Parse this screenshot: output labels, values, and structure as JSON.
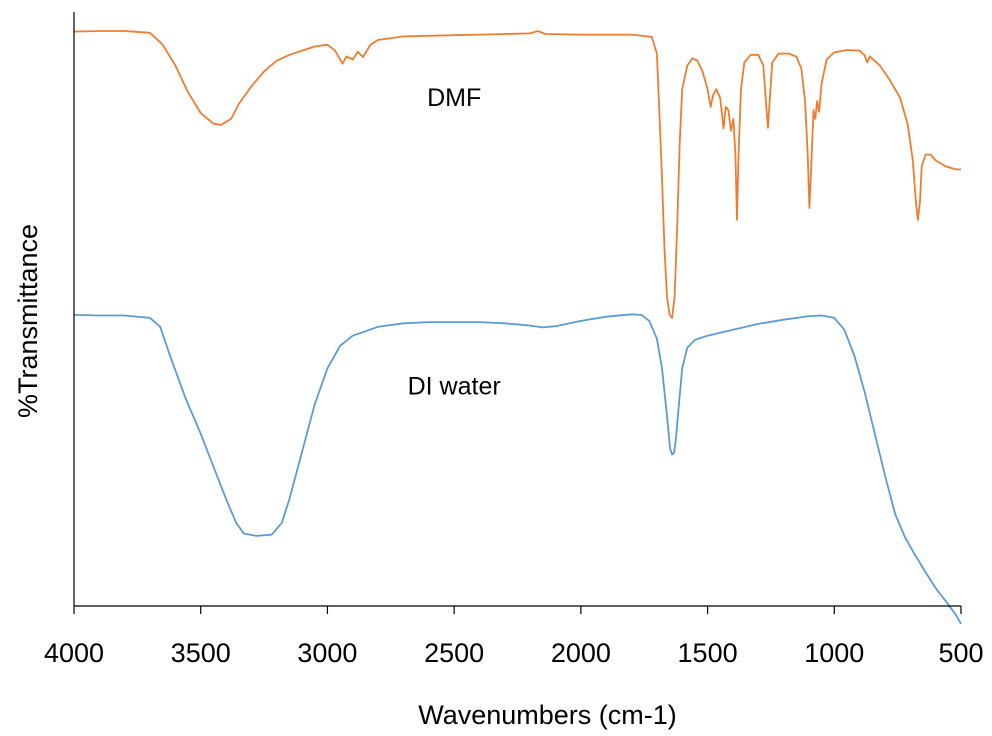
{
  "chart_data": {
    "type": "line",
    "title": "",
    "xlabel": "Wavenumbers (cm-1)",
    "ylabel": "%Transmittance",
    "xlim": [
      4000,
      500
    ],
    "x_reversed": true,
    "ylim": [
      0,
      100
    ],
    "y_ticks_shown": false,
    "grid": false,
    "legend": "none",
    "x_ticks": [
      4000,
      3500,
      3000,
      2500,
      2000,
      1500,
      1000,
      500
    ],
    "x_tick_labels": [
      "4000",
      "3500",
      "3000",
      "2500",
      "2000",
      "1500",
      "1000",
      "500"
    ],
    "series": [
      {
        "name": "DMF",
        "color": "#ed7d31",
        "points": [
          [
            4000,
            96.7
          ],
          [
            3900,
            96.8
          ],
          [
            3800,
            96.8
          ],
          [
            3700,
            96.5
          ],
          [
            3650,
            94.5
          ],
          [
            3600,
            91
          ],
          [
            3550,
            86.5
          ],
          [
            3500,
            83
          ],
          [
            3450,
            81.2
          ],
          [
            3420,
            81
          ],
          [
            3380,
            82
          ],
          [
            3350,
            84.5
          ],
          [
            3300,
            87.5
          ],
          [
            3250,
            90
          ],
          [
            3200,
            91.8
          ],
          [
            3150,
            92.8
          ],
          [
            3100,
            93.5
          ],
          [
            3050,
            94.2
          ],
          [
            3000,
            94.5
          ],
          [
            2970,
            93.5
          ],
          [
            2940,
            91.3
          ],
          [
            2925,
            92.5
          ],
          [
            2900,
            92
          ],
          [
            2880,
            93.3
          ],
          [
            2860,
            92.4
          ],
          [
            2830,
            94.5
          ],
          [
            2800,
            95.3
          ],
          [
            2700,
            95.9
          ],
          [
            2600,
            96
          ],
          [
            2500,
            96.1
          ],
          [
            2400,
            96.2
          ],
          [
            2300,
            96.3
          ],
          [
            2200,
            96.4
          ],
          [
            2170,
            96.8
          ],
          [
            2140,
            96.3
          ],
          [
            2000,
            96.2
          ],
          [
            1900,
            96.2
          ],
          [
            1800,
            96.2
          ],
          [
            1720,
            95.8
          ],
          [
            1700,
            93
          ],
          [
            1690,
            83
          ],
          [
            1680,
            72
          ],
          [
            1670,
            60
          ],
          [
            1660,
            52
          ],
          [
            1650,
            49
          ],
          [
            1640,
            48.5
          ],
          [
            1630,
            52
          ],
          [
            1620,
            64
          ],
          [
            1610,
            78
          ],
          [
            1600,
            87
          ],
          [
            1580,
            91
          ],
          [
            1560,
            92.2
          ],
          [
            1540,
            91.8
          ],
          [
            1520,
            90
          ],
          [
            1500,
            87
          ],
          [
            1488,
            84
          ],
          [
            1478,
            86
          ],
          [
            1465,
            87
          ],
          [
            1450,
            85.5
          ],
          [
            1437,
            80.4
          ],
          [
            1428,
            84
          ],
          [
            1418,
            83.5
          ],
          [
            1408,
            80
          ],
          [
            1398,
            82
          ],
          [
            1390,
            76
          ],
          [
            1384,
            65
          ],
          [
            1378,
            76
          ],
          [
            1368,
            87
          ],
          [
            1355,
            91.5
          ],
          [
            1330,
            92.8
          ],
          [
            1300,
            92.8
          ],
          [
            1280,
            91
          ],
          [
            1270,
            85
          ],
          [
            1262,
            80.5
          ],
          [
            1255,
            85
          ],
          [
            1245,
            91.5
          ],
          [
            1220,
            93
          ],
          [
            1180,
            93
          ],
          [
            1150,
            92.5
          ],
          [
            1130,
            90.5
          ],
          [
            1115,
            85
          ],
          [
            1105,
            76
          ],
          [
            1098,
            67
          ],
          [
            1090,
            75
          ],
          [
            1082,
            83.5
          ],
          [
            1075,
            82
          ],
          [
            1068,
            85
          ],
          [
            1060,
            83.2
          ],
          [
            1050,
            88
          ],
          [
            1030,
            92
          ],
          [
            1000,
            93.2
          ],
          [
            950,
            93.6
          ],
          [
            900,
            93.5
          ],
          [
            880,
            92.7
          ],
          [
            870,
            91.5
          ],
          [
            860,
            92.5
          ],
          [
            820,
            91
          ],
          [
            780,
            88.5
          ],
          [
            740,
            85.5
          ],
          [
            710,
            81
          ],
          [
            690,
            75
          ],
          [
            678,
            68
          ],
          [
            670,
            65
          ],
          [
            662,
            68
          ],
          [
            655,
            74
          ],
          [
            640,
            76
          ],
          [
            620,
            76
          ],
          [
            600,
            75
          ],
          [
            560,
            74
          ],
          [
            520,
            73.5
          ],
          [
            500,
            73.5
          ]
        ]
      },
      {
        "name": "DI water",
        "color": "#5b9bd5",
        "points": [
          [
            4000,
            49
          ],
          [
            3900,
            48.9
          ],
          [
            3800,
            48.9
          ],
          [
            3700,
            48.5
          ],
          [
            3660,
            47
          ],
          [
            3620,
            42
          ],
          [
            3560,
            35
          ],
          [
            3500,
            29
          ],
          [
            3450,
            23.5
          ],
          [
            3400,
            18
          ],
          [
            3360,
            14
          ],
          [
            3330,
            12.2
          ],
          [
            3280,
            11.8
          ],
          [
            3220,
            12
          ],
          [
            3180,
            14
          ],
          [
            3150,
            18
          ],
          [
            3100,
            26
          ],
          [
            3050,
            34
          ],
          [
            3000,
            40
          ],
          [
            2950,
            43.8
          ],
          [
            2900,
            45.5
          ],
          [
            2800,
            47
          ],
          [
            2700,
            47.6
          ],
          [
            2600,
            47.8
          ],
          [
            2500,
            47.8
          ],
          [
            2400,
            47.8
          ],
          [
            2300,
            47.6
          ],
          [
            2200,
            47.2
          ],
          [
            2150,
            46.9
          ],
          [
            2100,
            47.1
          ],
          [
            2000,
            48
          ],
          [
            1900,
            48.7
          ],
          [
            1800,
            49.1
          ],
          [
            1760,
            49
          ],
          [
            1730,
            48
          ],
          [
            1700,
            45
          ],
          [
            1680,
            40
          ],
          [
            1660,
            32
          ],
          [
            1648,
            26.5
          ],
          [
            1640,
            25.5
          ],
          [
            1632,
            25.8
          ],
          [
            1624,
            28.5
          ],
          [
            1615,
            33
          ],
          [
            1600,
            40
          ],
          [
            1580,
            43.5
          ],
          [
            1550,
            44.8
          ],
          [
            1500,
            45.5
          ],
          [
            1400,
            46.5
          ],
          [
            1300,
            47.5
          ],
          [
            1200,
            48.2
          ],
          [
            1100,
            48.8
          ],
          [
            1050,
            48.9
          ],
          [
            1000,
            48.5
          ],
          [
            960,
            46.5
          ],
          [
            920,
            42
          ],
          [
            880,
            36
          ],
          [
            840,
            29
          ],
          [
            800,
            22
          ],
          [
            760,
            15.5
          ],
          [
            720,
            11.5
          ],
          [
            680,
            8.5
          ],
          [
            640,
            5.7
          ],
          [
            600,
            3
          ],
          [
            560,
            0.8
          ],
          [
            520,
            -1.5
          ],
          [
            500,
            -3
          ]
        ]
      }
    ],
    "annotations": [
      {
        "text": "DMF",
        "series": "DMF",
        "x": 2500,
        "y": 85.7
      },
      {
        "text": "DI water",
        "series": "DI water",
        "x": 2500,
        "y": 37.1
      }
    ]
  }
}
